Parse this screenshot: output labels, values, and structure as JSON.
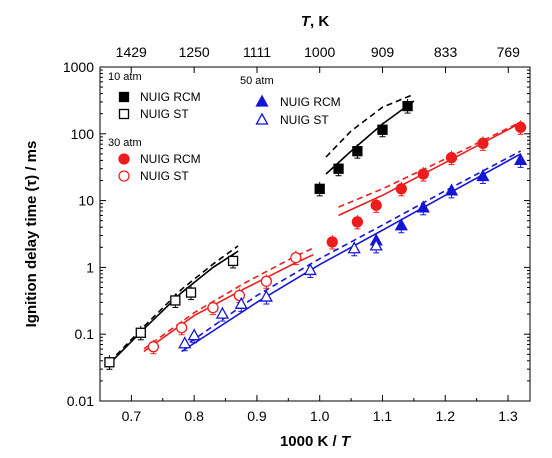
{
  "chart_data": {
    "type": "scatter",
    "xlabel": "1000 K / T",
    "xlabel_main": "1000 K / ",
    "xlabel_italic": "T",
    "ylabel": "Ignition delay time (τ) / ms",
    "top_axis_label_italic": "T",
    "top_axis_label_rest": ", K",
    "xlim": [
      0.65,
      1.335
    ],
    "ylim": [
      0.01,
      1000
    ],
    "y_scale": "log",
    "x_ticks": [
      "0.7",
      "0.8",
      "0.9",
      "1.0",
      "1.1",
      "1.2",
      "1.3"
    ],
    "x_tick_values": [
      0.7,
      0.8,
      0.9,
      1.0,
      1.1,
      1.2,
      1.3
    ],
    "y_ticks": [
      "0.01",
      "0.1",
      "1",
      "10",
      "100",
      "1000"
    ],
    "y_tick_values": [
      0.01,
      0.1,
      1,
      10,
      100,
      1000
    ],
    "top_ticks": [
      "1429",
      "1250",
      "1111",
      "1000",
      "909",
      "833",
      "769"
    ],
    "top_tick_values": [
      1429,
      1250,
      1111,
      1000,
      909,
      833,
      769
    ],
    "legend_groups": [
      {
        "header": "10 atm",
        "entries": [
          "NUIG RCM",
          "NUIG ST"
        ]
      },
      {
        "header": "30 atm",
        "entries": [
          "NUIG RCM",
          "NUIG ST"
        ]
      },
      {
        "header": "50 atm",
        "entries": [
          "NUIG RCM",
          "NUIG ST"
        ]
      }
    ],
    "series": [
      {
        "name": "10 atm NUIG RCM",
        "color": "#000000",
        "marker": "square",
        "filled": true,
        "x": [
          1.0,
          1.03,
          1.06,
          1.1,
          1.14
        ],
        "y": [
          15,
          30,
          55,
          115,
          260
        ]
      },
      {
        "name": "10 atm NUIG ST",
        "color": "#000000",
        "marker": "square",
        "filled": false,
        "x": [
          0.665,
          0.715,
          0.77,
          0.795,
          0.862
        ],
        "y": [
          0.038,
          0.105,
          0.32,
          0.42,
          1.25
        ]
      },
      {
        "name": "30 atm NUIG RCM",
        "color": "#ee1c1c",
        "marker": "circle",
        "filled": true,
        "x": [
          1.02,
          1.06,
          1.09,
          1.13,
          1.165,
          1.21,
          1.26,
          1.32
        ],
        "y": [
          2.4,
          4.8,
          8.5,
          15,
          25,
          44,
          72,
          125
        ]
      },
      {
        "name": "30 atm NUIG ST",
        "color": "#ee1c1c",
        "marker": "circle",
        "filled": false,
        "x": [
          0.735,
          0.78,
          0.83,
          0.872,
          0.915,
          0.962
        ],
        "y": [
          0.065,
          0.125,
          0.25,
          0.38,
          0.62,
          1.4
        ]
      },
      {
        "name": "50 atm NUIG RCM",
        "color": "#1515d6",
        "marker": "triangle",
        "filled": true,
        "x": [
          1.09,
          1.13,
          1.165,
          1.21,
          1.26,
          1.32
        ],
        "y": [
          2.5,
          4.2,
          7.8,
          14,
          23,
          40
        ]
      },
      {
        "name": "50 atm NUIG ST",
        "color": "#1515d6",
        "marker": "triangle",
        "filled": false,
        "x": [
          0.785,
          0.8,
          0.845,
          0.875,
          0.915,
          0.985,
          1.055,
          1.09
        ],
        "y": [
          0.072,
          0.095,
          0.2,
          0.28,
          0.36,
          0.9,
          1.9,
          2.1
        ]
      }
    ],
    "model_curves": [
      {
        "color": "#000000",
        "style": "solid",
        "x": [
          0.665,
          0.72,
          0.78,
          0.83,
          0.87
        ],
        "y": [
          0.036,
          0.12,
          0.42,
          1.0,
          1.75
        ]
      },
      {
        "color": "#000000",
        "style": "dashed",
        "x": [
          0.665,
          0.72,
          0.78,
          0.83,
          0.87
        ],
        "y": [
          0.038,
          0.13,
          0.47,
          1.12,
          2.1
        ]
      },
      {
        "color": "#000000",
        "style": "solid",
        "x": [
          1.01,
          1.05,
          1.1,
          1.15
        ],
        "y": [
          25,
          55,
          140,
          310
        ]
      },
      {
        "color": "#000000",
        "style": "dashed",
        "x": [
          1.01,
          1.05,
          1.1,
          1.15
        ],
        "y": [
          45,
          110,
          250,
          390
        ]
      },
      {
        "color": "#ee1c1c",
        "style": "solid",
        "x": [
          0.72,
          0.8,
          0.88,
          0.96,
          0.99
        ],
        "y": [
          0.055,
          0.19,
          0.48,
          1.15,
          1.55
        ]
      },
      {
        "color": "#ee1c1c",
        "style": "dashed",
        "x": [
          0.72,
          0.8,
          0.88,
          0.96,
          0.99
        ],
        "y": [
          0.06,
          0.21,
          0.58,
          1.45,
          1.95
        ]
      },
      {
        "color": "#ee1c1c",
        "style": "solid",
        "x": [
          1.03,
          1.1,
          1.2,
          1.32
        ],
        "y": [
          6,
          12,
          37,
          145
        ]
      },
      {
        "color": "#ee1c1c",
        "style": "dashed",
        "x": [
          1.03,
          1.1,
          1.2,
          1.32
        ],
        "y": [
          8,
          15,
          42,
          150
        ]
      },
      {
        "color": "#1515d6",
        "style": "solid",
        "x": [
          0.78,
          0.9,
          1.0,
          1.1,
          1.2,
          1.32
        ],
        "y": [
          0.055,
          0.3,
          1.1,
          3.6,
          12,
          50
        ]
      },
      {
        "color": "#1515d6",
        "style": "dashed",
        "x": [
          0.78,
          0.9,
          1.0,
          1.1,
          1.2,
          1.32
        ],
        "y": [
          0.062,
          0.38,
          1.35,
          4.3,
          14,
          55
        ]
      }
    ]
  }
}
